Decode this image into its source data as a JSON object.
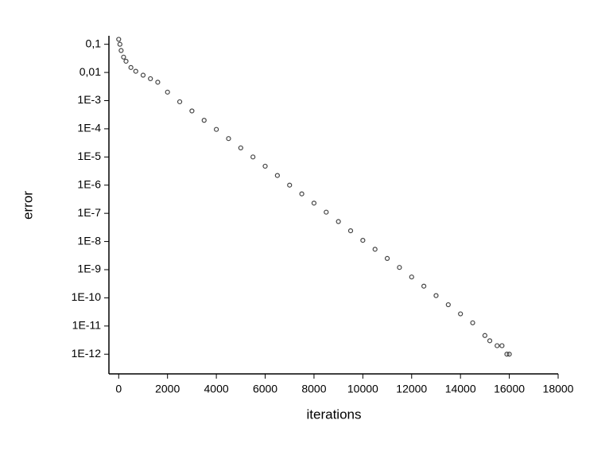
{
  "chart_data": {
    "type": "scatter",
    "x_label": "iterations",
    "y_label": "error",
    "x": [
      0,
      50,
      100,
      200,
      300,
      500,
      700,
      1000,
      1300,
      1600,
      2000,
      2500,
      3000,
      3500,
      4000,
      4500,
      5000,
      5500,
      6000,
      6500,
      7000,
      7500,
      8000,
      8500,
      9000,
      9500,
      10000,
      10500,
      11000,
      11500,
      12000,
      12500,
      13000,
      13500,
      14000,
      14500,
      15000,
      15200,
      15500,
      15700,
      15900,
      16000
    ],
    "series": [
      {
        "color": "#444444",
        "values": [
          0.15,
          0.1,
          0.06,
          0.035,
          0.025,
          0.015,
          0.011,
          0.008,
          0.006,
          0.0045,
          0.002,
          0.00091,
          0.00043,
          0.0002,
          9.5e-05,
          4.5e-05,
          2.1e-05,
          1e-05,
          4.7e-06,
          2.2e-06,
          1e-06,
          4.9e-07,
          2.3e-07,
          1.1e-07,
          5.1e-08,
          2.4e-08,
          1.1e-08,
          5.3e-09,
          2.5e-09,
          1.2e-09,
          5.5e-10,
          2.6e-10,
          1.2e-10,
          5.7e-11,
          2.7e-11,
          1.3e-11,
          4.6e-12,
          3e-12,
          2e-12,
          2e-12,
          1e-12,
          1e-12
        ]
      }
    ],
    "xlim": [
      -400,
      18000
    ],
    "xticks": [
      0,
      2000,
      4000,
      6000,
      8000,
      10000,
      12000,
      14000,
      16000,
      18000
    ],
    "ylim": [
      2e-13,
      0.2
    ],
    "log_y": true,
    "yticks": [
      {
        "value": 0.1,
        "label": "0,1"
      },
      {
        "value": 0.01,
        "label": "0,01"
      },
      {
        "value": 0.001,
        "label": "1E-3"
      },
      {
        "value": 0.0001,
        "label": "1E-4"
      },
      {
        "value": 1e-05,
        "label": "1E-5"
      },
      {
        "value": 1e-06,
        "label": "1E-6"
      },
      {
        "value": 1e-07,
        "label": "1E-7"
      },
      {
        "value": 1e-08,
        "label": "1E-8"
      },
      {
        "value": 1e-09,
        "label": "1E-9"
      },
      {
        "value": 1e-10,
        "label": "1E-10"
      },
      {
        "value": 1e-11,
        "label": "1E-11"
      },
      {
        "value": 1e-12,
        "label": "1E-12"
      }
    ]
  }
}
